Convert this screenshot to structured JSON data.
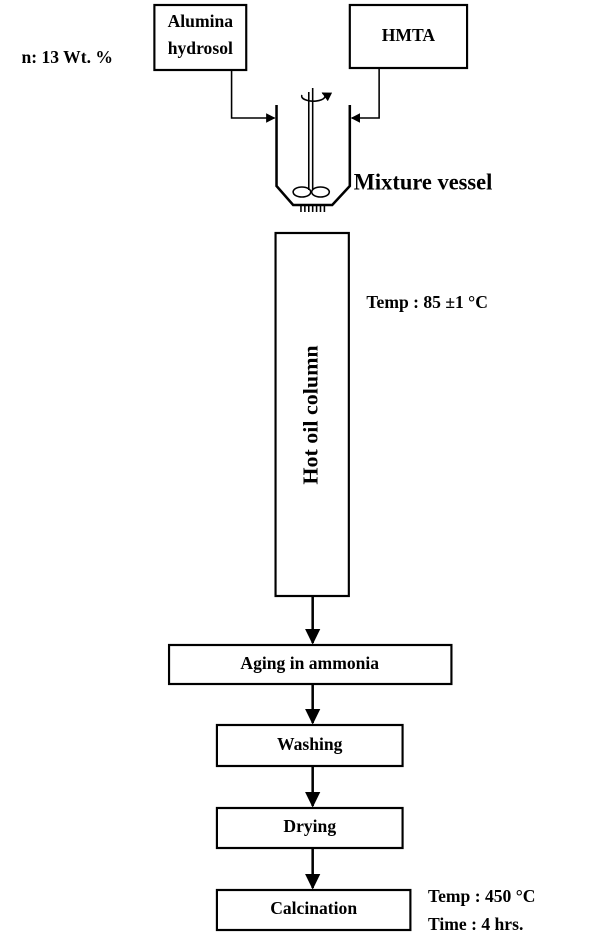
{
  "nodes": [
    {
      "label_lines": [
        "Alumina",
        "hydrosol"
      ]
    },
    {
      "label": "HMTA"
    },
    {
      "label": "Mixture vessel"
    },
    {
      "label": "Hot oil column"
    },
    {
      "label": "Aging in ammonia"
    },
    {
      "label": "Washing"
    },
    {
      "label": "Drying"
    },
    {
      "label": "Calcination"
    }
  ],
  "annotations": {
    "concentration": "n: 13 Wt. %",
    "column_temp": "Temp : 85 ±1 °C",
    "calcination_temp": "Temp : 450 °C",
    "calcination_time": "Time : 4 hrs."
  }
}
